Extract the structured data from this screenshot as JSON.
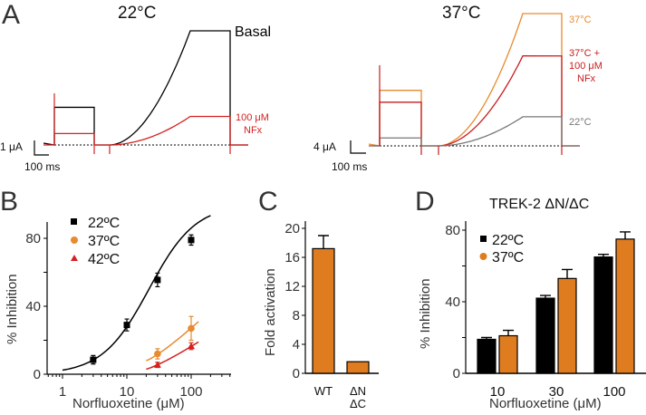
{
  "colors": {
    "black": "#000000",
    "red": "#d42020",
    "orange": "#e88a2e",
    "dark_red": "#c91d1d",
    "gray": "#777777",
    "bar_orange": "#e07c20",
    "text_gray": "#333333"
  },
  "panel_labels": {
    "a": "A",
    "b": "B",
    "c": "C",
    "d": "D"
  },
  "chart_data": [
    {
      "id": "A-left",
      "type": "line",
      "title": "22°C",
      "description": "Current traces at 22°C",
      "series": [
        {
          "name": "Basal",
          "color": "#000000",
          "step_level": 0.33,
          "ramp_end_level": 1.0
        },
        {
          "name": "100 μM NFx",
          "color": "#d42020",
          "step_level": 0.1,
          "ramp_end_level": 0.25
        }
      ],
      "labels": {
        "basal": "Basal",
        "nfx_line1": "100 μM",
        "nfx_line2": "NFx"
      },
      "scale_bar": {
        "current": "1 μA",
        "time": "100 ms"
      }
    },
    {
      "id": "A-right",
      "type": "line",
      "title": "37°C",
      "description": "Current traces at 37°C",
      "series": [
        {
          "name": "37°C",
          "color": "#e88a2e",
          "step_level": 0.42,
          "ramp_end_level": 1.0
        },
        {
          "name": "37°C + 100 μM NFx",
          "color": "#c91d1d",
          "step_level": 0.33,
          "ramp_end_level": 0.68
        },
        {
          "name": "22°C",
          "color": "#777777",
          "step_level": 0.06,
          "ramp_end_level": 0.22
        }
      ],
      "labels": {
        "t37": "37°C",
        "nfx_line1": "37°C +",
        "nfx_line2": "100 μM",
        "nfx_line3": "NFx",
        "t22": "22°C"
      },
      "scale_bar": {
        "current": "4 μA",
        "time": "100 ms"
      }
    },
    {
      "id": "B",
      "type": "scatter",
      "xlabel": "Norfluoxetine (μM)",
      "ylabel": "% Inhibition",
      "xscale": "log",
      "xlim": [
        0.6,
        400
      ],
      "ylim": [
        0,
        90
      ],
      "xticks": [
        1,
        10,
        100
      ],
      "xtick_labels": [
        "1",
        "10",
        "100"
      ],
      "yticks": [
        0,
        40,
        80
      ],
      "ytick_labels": [
        "0",
        "40",
        "80"
      ],
      "legend_position": "top-left",
      "series": [
        {
          "name": "22ºC",
          "marker": "square",
          "color": "#000000",
          "x": [
            3,
            10,
            30,
            100
          ],
          "y": [
            8.5,
            29,
            55.5,
            79
          ],
          "err": [
            2.5,
            3.5,
            4,
            3
          ],
          "fit": {
            "ic50": 22,
            "hill": 1.2,
            "max": 100,
            "xrange": [
              1,
              200
            ]
          }
        },
        {
          "name": "37ºC",
          "marker": "circle",
          "color": "#e88a2e",
          "x": [
            30,
            100
          ],
          "y": [
            12,
            27
          ],
          "err": [
            3,
            7
          ],
          "fit": {
            "xrange": [
              20,
              130
            ],
            "y_at_start": 8,
            "y_at_end": 31
          }
        },
        {
          "name": "42ºC",
          "marker": "triangle",
          "color": "#d42020",
          "x": [
            30,
            100
          ],
          "y": [
            5.5,
            16.5
          ],
          "err": [
            1.5,
            2
          ],
          "fit": {
            "xrange": [
              20,
              130
            ],
            "y_at_start": 3,
            "y_at_end": 19
          }
        }
      ]
    },
    {
      "id": "C",
      "type": "bar",
      "ylabel": "Fold activation",
      "categories": [
        "WT",
        "ΔN ΔC"
      ],
      "category_lines": [
        [
          "WT"
        ],
        [
          "ΔN",
          "ΔC"
        ]
      ],
      "values": [
        17.2,
        1.6
      ],
      "errors": [
        1.8,
        0.1
      ],
      "color": "#e07c20",
      "ylim": [
        0,
        20
      ],
      "yticks": [
        0,
        4,
        8,
        12,
        16,
        20
      ],
      "ytick_labels": [
        "0",
        "4",
        "8",
        "12",
        "16",
        "20"
      ]
    },
    {
      "id": "D",
      "type": "bar",
      "title": "TREK-2 ΔN/ΔC",
      "xlabel": "Norfluoxetine (μM)",
      "ylabel": "% Inhibition",
      "categories": [
        "10",
        "30",
        "100"
      ],
      "ylim": [
        0,
        80
      ],
      "yticks": [
        0,
        40,
        80
      ],
      "ytick_labels": [
        "0",
        "40",
        "80"
      ],
      "legend_position": "top-left",
      "series": [
        {
          "name": "22ºC",
          "color": "#000000",
          "marker": "square",
          "values": [
            19,
            42,
            65
          ],
          "errors": [
            1,
            1.5,
            1.5
          ]
        },
        {
          "name": "37ºC",
          "color": "#e07c20",
          "marker": "circle",
          "values": [
            21,
            53,
            75
          ],
          "errors": [
            3,
            5,
            4
          ]
        }
      ]
    }
  ]
}
